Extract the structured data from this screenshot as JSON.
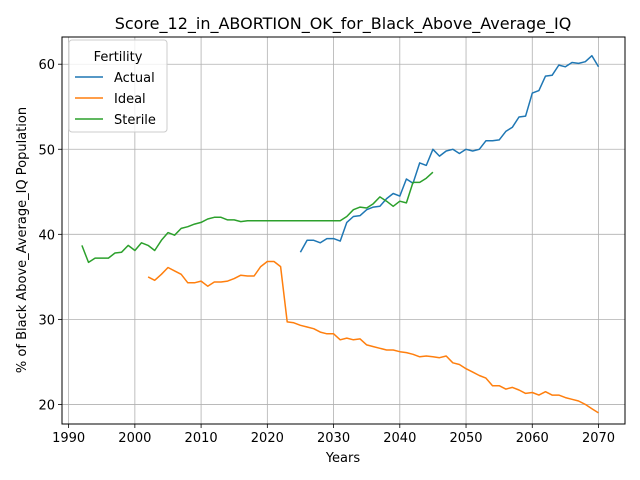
{
  "chart_data": {
    "type": "line",
    "title": "Score_12_in_ABORTION_OK_for_Black_Above_Average_IQ",
    "xlabel": "Years",
    "ylabel": "% of Black Above_Average_IQ Population",
    "xlim": [
      1989,
      2074
    ],
    "ylim": [
      17.7,
      63.2
    ],
    "xticks": [
      1990,
      2000,
      2010,
      2020,
      2030,
      2040,
      2050,
      2060,
      2070
    ],
    "yticks": [
      20,
      30,
      40,
      50,
      60
    ],
    "grid": true,
    "legend": {
      "title": "Fertility",
      "placement": "top-left"
    },
    "series": [
      {
        "name": "Actual",
        "color": "#1f77b4",
        "x": [
          2025,
          2026,
          2027,
          2028,
          2029,
          2030,
          2031,
          2032,
          2033,
          2034,
          2035,
          2036,
          2037,
          2038,
          2039,
          2040,
          2041,
          2042,
          2043,
          2044,
          2045,
          2046,
          2047,
          2048,
          2049,
          2050,
          2051,
          2052,
          2053,
          2054,
          2055,
          2056,
          2057,
          2058,
          2059,
          2060,
          2061,
          2062,
          2063,
          2064,
          2065,
          2066,
          2067,
          2068,
          2069,
          2070
        ],
        "y": [
          37.9,
          39.3,
          39.3,
          39.0,
          39.5,
          39.5,
          39.2,
          41.4,
          42.1,
          42.2,
          42.9,
          43.2,
          43.3,
          44.2,
          44.8,
          44.5,
          46.5,
          46.0,
          48.4,
          48.1,
          50.0,
          49.2,
          49.8,
          50.0,
          49.5,
          50.0,
          49.8,
          50.0,
          51.0,
          51.0,
          51.1,
          52.1,
          52.6,
          53.8,
          53.9,
          56.6,
          56.9,
          58.6,
          58.7,
          59.9,
          59.7,
          60.2,
          60.1,
          60.3,
          61.0,
          59.7
        ]
      },
      {
        "name": "Ideal",
        "color": "#ff7f0e",
        "x": [
          2002,
          2003,
          2004,
          2005,
          2006,
          2007,
          2008,
          2009,
          2010,
          2011,
          2012,
          2013,
          2014,
          2015,
          2016,
          2017,
          2018,
          2019,
          2020,
          2021,
          2022,
          2023,
          2024,
          2025,
          2026,
          2027,
          2028,
          2029,
          2030,
          2031,
          2032,
          2033,
          2034,
          2035,
          2036,
          2037,
          2038,
          2039,
          2040,
          2041,
          2042,
          2043,
          2044,
          2045,
          2046,
          2047,
          2048,
          2049,
          2050,
          2051,
          2052,
          2053,
          2054,
          2055,
          2056,
          2057,
          2058,
          2059,
          2060,
          2061,
          2062,
          2063,
          2064,
          2065,
          2066,
          2067,
          2068,
          2069,
          2070
        ],
        "y": [
          35.0,
          34.6,
          35.3,
          36.1,
          35.7,
          35.3,
          34.3,
          34.3,
          34.5,
          33.9,
          34.4,
          34.4,
          34.5,
          34.8,
          35.2,
          35.1,
          35.1,
          36.2,
          36.8,
          36.8,
          36.2,
          29.7,
          29.6,
          29.3,
          29.1,
          28.9,
          28.5,
          28.3,
          28.3,
          27.6,
          27.8,
          27.6,
          27.7,
          27.0,
          26.8,
          26.6,
          26.4,
          26.4,
          26.2,
          26.1,
          25.9,
          25.6,
          25.7,
          25.6,
          25.5,
          25.7,
          24.9,
          24.7,
          24.2,
          23.8,
          23.4,
          23.1,
          22.2,
          22.2,
          21.8,
          22.0,
          21.7,
          21.3,
          21.4,
          21.1,
          21.5,
          21.1,
          21.1,
          20.8,
          20.6,
          20.4,
          20.0,
          19.5,
          19.0
        ]
      },
      {
        "name": "Sterile",
        "color": "#2ca02c",
        "x": [
          1992,
          1993,
          1994,
          1995,
          1996,
          1997,
          1998,
          1999,
          2000,
          2001,
          2002,
          2003,
          2004,
          2005,
          2006,
          2007,
          2008,
          2009,
          2010,
          2011,
          2012,
          2013,
          2014,
          2015,
          2016,
          2017,
          2018,
          2019,
          2020,
          2021,
          2022,
          2023,
          2024,
          2025,
          2026,
          2027,
          2028,
          2029,
          2030,
          2031,
          2032,
          2033,
          2034,
          2035,
          2036,
          2037,
          2038,
          2039,
          2040,
          2041,
          2042,
          2043,
          2044,
          2045
        ],
        "y": [
          38.7,
          36.7,
          37.2,
          37.2,
          37.2,
          37.8,
          37.9,
          38.7,
          38.1,
          39.0,
          38.7,
          38.1,
          39.3,
          40.2,
          39.9,
          40.7,
          40.9,
          41.2,
          41.4,
          41.8,
          42.0,
          42.0,
          41.7,
          41.7,
          41.5,
          41.6,
          41.6,
          41.6,
          41.6,
          41.6,
          41.6,
          41.6,
          41.6,
          41.6,
          41.6,
          41.6,
          41.6,
          41.6,
          41.6,
          41.6,
          42.1,
          42.9,
          43.2,
          43.1,
          43.6,
          44.4,
          43.9,
          43.3,
          43.9,
          43.7,
          46.1,
          46.1,
          46.6,
          47.3
        ]
      }
    ]
  }
}
